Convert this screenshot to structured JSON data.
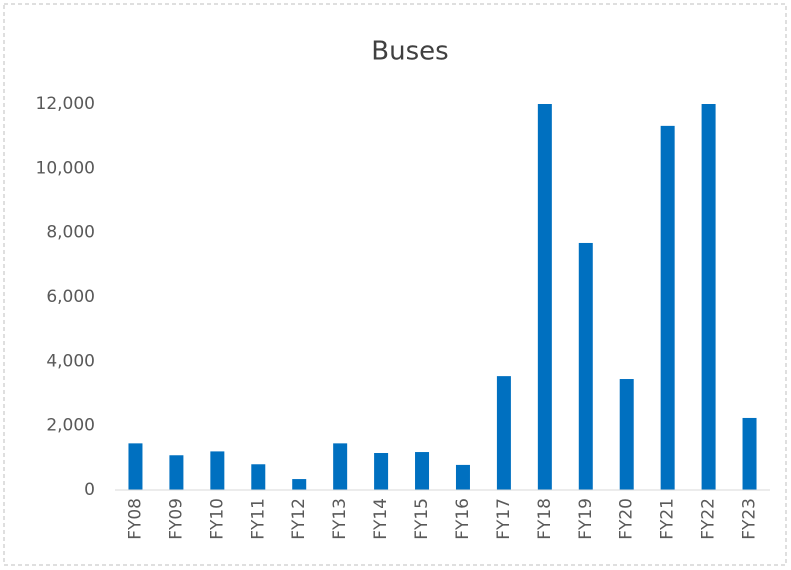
{
  "chart_data": {
    "type": "bar",
    "title": "Buses",
    "categories": [
      "FY08",
      "FY09",
      "FY10",
      "FY11",
      "FY12",
      "FY13",
      "FY14",
      "FY15",
      "FY16",
      "FY17",
      "FY18",
      "FY19",
      "FY20",
      "FY21",
      "FY22",
      "FY23"
    ],
    "values": [
      1450,
      1080,
      1200,
      800,
      340,
      1450,
      1150,
      1180,
      780,
      3540,
      12000,
      7680,
      3450,
      11320,
      12000,
      2240
    ],
    "color": "#0070c0",
    "ylim": [
      0,
      12000
    ],
    "yticks": [
      0,
      {
        "value": 2000,
        "label": "2,000"
      },
      {
        "value": 4000,
        "label": "4,000"
      },
      {
        "value": 6000,
        "label": "6,000"
      },
      {
        "value": 8000,
        "label": "8,000"
      },
      {
        "value": 10000,
        "label": "10,000"
      },
      {
        "value": 12000,
        "label": "12,000"
      }
    ],
    "grid": false
  }
}
